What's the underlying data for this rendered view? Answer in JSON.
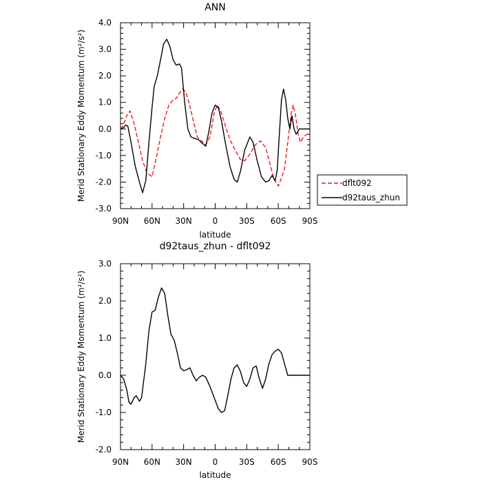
{
  "chart_data": [
    {
      "type": "line",
      "title": "ANN",
      "xlabel": "latitude",
      "ylabel": "Merid Stationary Eddy Momentum (m²/s²)",
      "x_ticks": [
        "90N",
        "60N",
        "30N",
        "0",
        "30S",
        "60S",
        "90S"
      ],
      "xlim": [
        90,
        -90
      ],
      "ylim": [
        -3.0,
        4.0
      ],
      "y_ticks": [
        "-3.0",
        "-2.0",
        "-1.0",
        "0.0",
        "1.0",
        "2.0",
        "3.0",
        "4.0"
      ],
      "y_tick_values": [
        -3,
        -2,
        -1,
        0,
        1,
        2,
        3,
        4
      ],
      "legend": {
        "placement": "right",
        "entries": [
          "dflt092",
          "d92taus_zhun"
        ]
      },
      "series": [
        {
          "name": "dflt092",
          "color": "#e8191e",
          "dash": "dashed",
          "points": [
            [
              90,
              0.0
            ],
            [
              88,
              0.1
            ],
            [
              84,
              0.5
            ],
            [
              81,
              0.68
            ],
            [
              77,
              0.2
            ],
            [
              73,
              -0.5
            ],
            [
              69,
              -1.2
            ],
            [
              65,
              -1.65
            ],
            [
              60,
              -1.8
            ],
            [
              56,
              -1.1
            ],
            [
              52,
              -0.3
            ],
            [
              48,
              0.4
            ],
            [
              44,
              0.9
            ],
            [
              40,
              1.1
            ],
            [
              37,
              1.15
            ],
            [
              34,
              1.35
            ],
            [
              31,
              1.5
            ],
            [
              28,
              1.4
            ],
            [
              25,
              1.0
            ],
            [
              21,
              0.35
            ],
            [
              17,
              -0.3
            ],
            [
              13,
              -0.45
            ],
            [
              9,
              -0.6
            ],
            [
              5,
              -0.3
            ],
            [
              1,
              0.6
            ],
            [
              -2,
              0.9
            ],
            [
              -5,
              0.7
            ],
            [
              -9,
              0.2
            ],
            [
              -14,
              -0.4
            ],
            [
              -19,
              -0.8
            ],
            [
              -24,
              -1.15
            ],
            [
              -28,
              -1.2
            ],
            [
              -33,
              -0.95
            ],
            [
              -38,
              -0.6
            ],
            [
              -43,
              -0.45
            ],
            [
              -48,
              -0.7
            ],
            [
              -52,
              -1.3
            ],
            [
              -56,
              -1.9
            ],
            [
              -60,
              -2.15
            ],
            [
              -63,
              -1.85
            ],
            [
              -66,
              -1.5
            ],
            [
              -69,
              -0.5
            ],
            [
              -72,
              0.5
            ],
            [
              -74,
              0.9
            ],
            [
              -76,
              0.6
            ],
            [
              -79,
              -0.2
            ],
            [
              -81,
              -0.5
            ],
            [
              -84,
              -0.3
            ],
            [
              -87,
              -0.2
            ],
            [
              -90,
              -0.2
            ]
          ]
        },
        {
          "name": "d92taus_zhun",
          "color": "#000000",
          "dash": "solid",
          "points": [
            [
              90,
              0.0
            ],
            [
              87,
              0.05
            ],
            [
              85,
              0.15
            ],
            [
              83,
              0.1
            ],
            [
              80,
              -0.5
            ],
            [
              76,
              -1.4
            ],
            [
              72,
              -2.0
            ],
            [
              69,
              -2.4
            ],
            [
              66,
              -1.95
            ],
            [
              63,
              -0.5
            ],
            [
              60,
              0.8
            ],
            [
              58,
              1.6
            ],
            [
              55,
              2.0
            ],
            [
              52,
              2.6
            ],
            [
              49,
              3.2
            ],
            [
              46,
              3.38
            ],
            [
              43,
              3.1
            ],
            [
              40,
              2.6
            ],
            [
              37,
              2.4
            ],
            [
              34,
              2.45
            ],
            [
              32,
              2.3
            ],
            [
              29,
              1.0
            ],
            [
              26,
              0.0
            ],
            [
              23,
              -0.3
            ],
            [
              20,
              -0.35
            ],
            [
              16,
              -0.4
            ],
            [
              12,
              -0.55
            ],
            [
              9,
              -0.65
            ],
            [
              6,
              -0.1
            ],
            [
              3,
              0.6
            ],
            [
              0,
              0.9
            ],
            [
              -3,
              0.8
            ],
            [
              -6,
              0.3
            ],
            [
              -10,
              -0.6
            ],
            [
              -14,
              -1.4
            ],
            [
              -18,
              -1.9
            ],
            [
              -21,
              -2.0
            ],
            [
              -24,
              -1.6
            ],
            [
              -28,
              -0.8
            ],
            [
              -33,
              -0.3
            ],
            [
              -36,
              -0.5
            ],
            [
              -40,
              -1.2
            ],
            [
              -44,
              -1.8
            ],
            [
              -48,
              -2.0
            ],
            [
              -51,
              -1.95
            ],
            [
              -54,
              -1.75
            ],
            [
              -57,
              -1.95
            ],
            [
              -59,
              -1.55
            ],
            [
              -61,
              -0.2
            ],
            [
              -63,
              1.1
            ],
            [
              -65,
              1.5
            ],
            [
              -67,
              1.1
            ],
            [
              -69,
              0.4
            ],
            [
              -71,
              0.0
            ],
            [
              -73,
              0.5
            ],
            [
              -75,
              0.0
            ],
            [
              -77,
              -0.2
            ],
            [
              -80,
              0.0
            ],
            [
              -90,
              0.0
            ]
          ]
        }
      ]
    },
    {
      "type": "line",
      "title": "d92taus_zhun - dflt092",
      "xlabel": "latitude",
      "ylabel": "Merid Stationary Eddy Momentum (m²/s²)",
      "x_ticks": [
        "90N",
        "60N",
        "30N",
        "0",
        "30S",
        "60S",
        "90S"
      ],
      "xlim": [
        90,
        -90
      ],
      "ylim": [
        -2.0,
        3.0
      ],
      "y_ticks": [
        "-2.0",
        "-1.0",
        "0.0",
        "1.0",
        "2.0",
        "3.0"
      ],
      "y_tick_values": [
        -2,
        -1,
        0,
        1,
        2,
        3
      ],
      "series": [
        {
          "name": "",
          "color": "#000000",
          "dash": "solid",
          "points": [
            [
              90,
              0.0
            ],
            [
              87,
              -0.1
            ],
            [
              84,
              -0.4
            ],
            [
              82,
              -0.72
            ],
            [
              80,
              -0.78
            ],
            [
              77,
              -0.6
            ],
            [
              75,
              -0.55
            ],
            [
              72,
              -0.7
            ],
            [
              70,
              -0.6
            ],
            [
              66,
              0.3
            ],
            [
              63,
              1.2
            ],
            [
              60,
              1.7
            ],
            [
              57,
              1.75
            ],
            [
              54,
              2.1
            ],
            [
              51,
              2.35
            ],
            [
              48,
              2.2
            ],
            [
              45,
              1.6
            ],
            [
              42,
              1.1
            ],
            [
              39,
              0.95
            ],
            [
              36,
              0.6
            ],
            [
              33,
              0.2
            ],
            [
              30,
              0.12
            ],
            [
              27,
              0.15
            ],
            [
              24,
              0.2
            ],
            [
              21,
              0.0
            ],
            [
              18,
              -0.15
            ],
            [
              15,
              -0.05
            ],
            [
              12,
              0.0
            ],
            [
              9,
              -0.05
            ],
            [
              5,
              -0.3
            ],
            [
              1,
              -0.6
            ],
            [
              -3,
              -0.9
            ],
            [
              -6,
              -1.0
            ],
            [
              -9,
              -0.95
            ],
            [
              -12,
              -0.55
            ],
            [
              -15,
              -0.1
            ],
            [
              -18,
              0.2
            ],
            [
              -21,
              0.28
            ],
            [
              -24,
              0.1
            ],
            [
              -27,
              -0.2
            ],
            [
              -30,
              -0.3
            ],
            [
              -33,
              -0.1
            ],
            [
              -36,
              0.2
            ],
            [
              -39,
              0.25
            ],
            [
              -42,
              -0.1
            ],
            [
              -45,
              -0.35
            ],
            [
              -48,
              -0.1
            ],
            [
              -51,
              0.3
            ],
            [
              -54,
              0.55
            ],
            [
              -57,
              0.65
            ],
            [
              -60,
              0.7
            ],
            [
              -63,
              0.6
            ],
            [
              -66,
              0.3
            ],
            [
              -69,
              0.0
            ],
            [
              -72,
              0.0
            ],
            [
              -90,
              0.0
            ]
          ]
        }
      ]
    }
  ]
}
